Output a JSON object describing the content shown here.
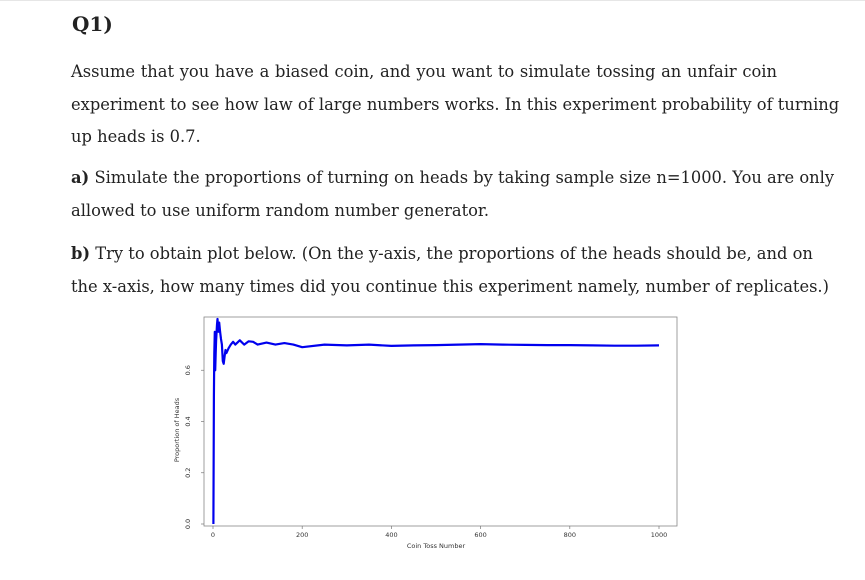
{
  "question": {
    "title": "Q1)",
    "intro_lines": [
      "Assume that you have a biased coin, and you want to simulate tossing an unfair coin",
      "experiment to see how law of large numbers works. In this experiment probability of turning",
      "up heads is 0.7."
    ],
    "part_a": {
      "label": "a)",
      "lines": [
        " Simulate the proportions of turning on heads by taking sample size n=1000. You are only",
        "allowed to use uniform random number generator."
      ]
    },
    "part_b": {
      "label": "b)",
      "lines": [
        " Try to obtain plot below. (On the y-axis, the proportions of the heads should be, and on",
        "the x-axis, how many times did you continue this experiment namely, number of replicates.)"
      ]
    }
  },
  "chart_data": {
    "type": "line",
    "xlabel": "Coin Toss Number",
    "ylabel": "Proportion of Heads",
    "x_ticks": [
      0,
      200,
      400,
      600,
      800,
      1000
    ],
    "y_ticks": [
      0.0,
      0.2,
      0.4,
      0.6
    ],
    "y_tick_labels": [
      "0.0",
      "0.2",
      "0.4",
      "0.6"
    ],
    "xlim": [
      0,
      1000
    ],
    "ylim": [
      0,
      0.8
    ],
    "grid": false,
    "line_color": "#0000ee",
    "series": [
      {
        "x": [
          1,
          2,
          3,
          4,
          5,
          6,
          7,
          8,
          9,
          10,
          12,
          14,
          16,
          18,
          20,
          22,
          24,
          26,
          28,
          30,
          35,
          40,
          45,
          50,
          60,
          70,
          80,
          90,
          100,
          120,
          140,
          160,
          180,
          200,
          250,
          300,
          350,
          400,
          450,
          500,
          550,
          600,
          650,
          700,
          750,
          800,
          850,
          900,
          950,
          1000
        ],
        "y": [
          0.0,
          0.5,
          0.667,
          0.75,
          0.6,
          0.667,
          0.714,
          0.75,
          0.778,
          0.8,
          0.75,
          0.786,
          0.75,
          0.722,
          0.7,
          0.636,
          0.625,
          0.654,
          0.679,
          0.667,
          0.686,
          0.7,
          0.711,
          0.7,
          0.717,
          0.7,
          0.713,
          0.711,
          0.7,
          0.708,
          0.7,
          0.706,
          0.7,
          0.69,
          0.7,
          0.697,
          0.7,
          0.695,
          0.697,
          0.698,
          0.7,
          0.702,
          0.7,
          0.699,
          0.698,
          0.698,
          0.697,
          0.696,
          0.696,
          0.697
        ]
      }
    ]
  }
}
